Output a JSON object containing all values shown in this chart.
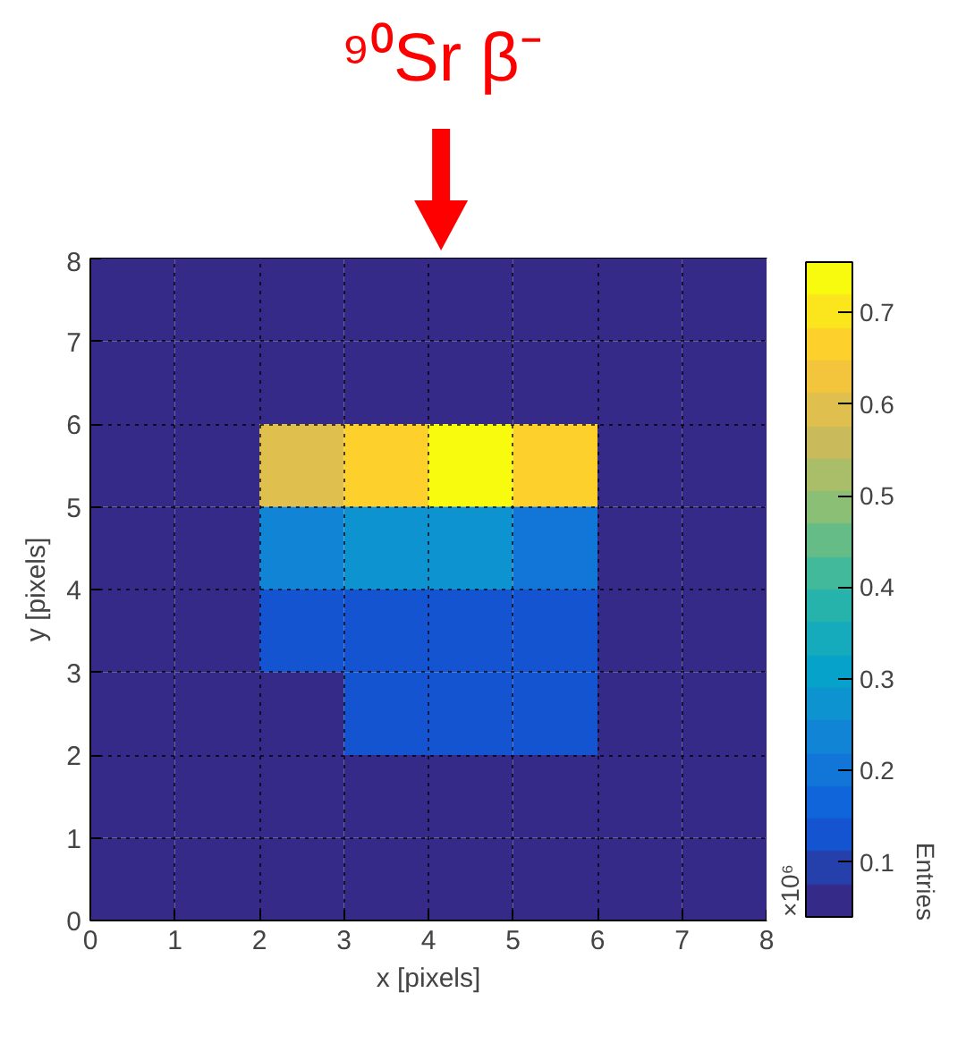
{
  "chart_data": {
    "type": "heatmap",
    "xlabel": "x [pixels]",
    "ylabel": "y [pixels]",
    "clabel": "Entries",
    "annotations": [
      "⁹⁰Sr β⁻",
      "×10⁶"
    ],
    "x": [
      0.5,
      1.5,
      2.5,
      3.5,
      4.5,
      5.5,
      6.5,
      7.5
    ],
    "y": [
      7.5,
      6.5,
      5.5,
      4.5,
      3.5,
      2.5,
      1.5,
      0.5
    ],
    "cells": [
      [
        0.045,
        0.045,
        0.045,
        0.045,
        0.045,
        0.045,
        0.045,
        0.045
      ],
      [
        0.045,
        0.045,
        0.045,
        0.045,
        0.045,
        0.045,
        0.045,
        0.045
      ],
      [
        0.045,
        0.045,
        0.61,
        0.68,
        0.75,
        0.65,
        0.045,
        0.045
      ],
      [
        0.045,
        0.045,
        0.25,
        0.26,
        0.29,
        0.21,
        0.045,
        0.045
      ],
      [
        0.045,
        0.045,
        0.13,
        0.13,
        0.14,
        0.14,
        0.045,
        0.045
      ],
      [
        0.045,
        0.045,
        0.045,
        0.14,
        0.14,
        0.14,
        0.045,
        0.045
      ],
      [
        0.045,
        0.045,
        0.045,
        0.045,
        0.045,
        0.045,
        0.045,
        0.045
      ],
      [
        0.045,
        0.045,
        0.045,
        0.045,
        0.045,
        0.045,
        0.045,
        0.045
      ]
    ],
    "xlim": [
      0,
      8
    ],
    "ylim": [
      0,
      8
    ],
    "xticks": [
      0,
      1,
      2,
      3,
      4,
      5,
      6,
      7,
      8
    ],
    "yticks": [
      0,
      1,
      2,
      3,
      4,
      5,
      6,
      7,
      8
    ],
    "clim": [
      0.04,
      0.755
    ],
    "cticks": [
      0.1,
      0.2,
      0.3,
      0.4,
      0.5,
      0.6,
      0.7
    ],
    "grid": true
  }
}
